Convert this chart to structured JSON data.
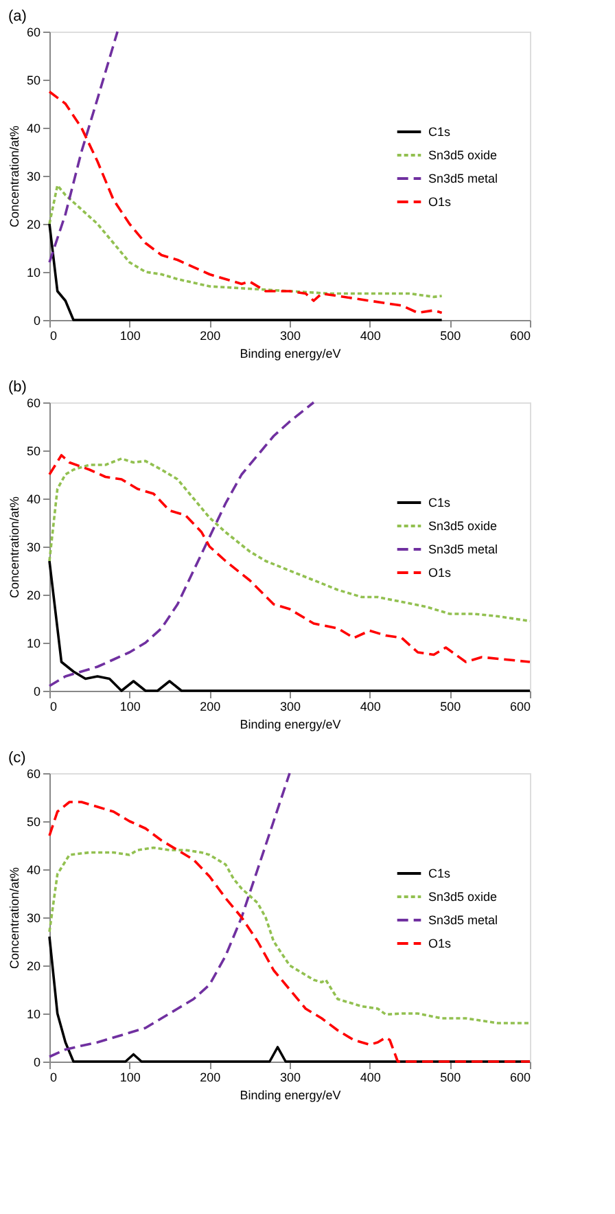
{
  "chart_data": [
    {
      "type": "line",
      "title": "(a)",
      "xlabel": "Binding energy/eV",
      "ylabel": "Concentration/at%",
      "xlim": [
        0,
        600
      ],
      "xticks": [
        0,
        100,
        200,
        300,
        400,
        500,
        600
      ],
      "ylim": [
        0,
        60
      ],
      "yticks": [
        0,
        10,
        20,
        30,
        40,
        50,
        60
      ],
      "grid": false,
      "legend": "right",
      "series": [
        {
          "name": "C1s",
          "color": "#000000",
          "line_style": "solid",
          "x": [
            0,
            5,
            10,
            20,
            25,
            30,
            490
          ],
          "values": [
            20,
            13,
            6,
            4,
            2,
            0,
            0
          ]
        },
        {
          "name": "Sn3d5 oxide",
          "color": "#92c050",
          "line_style": "dotted",
          "x": [
            0,
            10,
            20,
            40,
            60,
            80,
            100,
            120,
            140,
            160,
            200,
            250,
            300,
            350,
            400,
            450,
            480,
            490
          ],
          "values": [
            20,
            28,
            26,
            23,
            20,
            16,
            12,
            10,
            9.5,
            8.5,
            7,
            6.5,
            6,
            5.5,
            5.5,
            5.5,
            4.8,
            5
          ]
        },
        {
          "name": "Sn3d5 metal",
          "color": "#7030a0",
          "line_style": "dashed",
          "x": [
            0,
            20,
            40,
            60,
            85
          ],
          "values": [
            12,
            22,
            35,
            46,
            60
          ]
        },
        {
          "name": "O1s",
          "color": "#ff0000",
          "line_style": "dashed",
          "x": [
            0,
            20,
            40,
            60,
            80,
            100,
            120,
            140,
            160,
            200,
            240,
            250,
            270,
            300,
            320,
            330,
            340,
            360,
            400,
            440,
            460,
            480,
            490
          ],
          "values": [
            47.5,
            45,
            40,
            33,
            25,
            20,
            16,
            13.5,
            12.5,
            9.5,
            7.5,
            8,
            6,
            6,
            5.5,
            4,
            5.5,
            5,
            4,
            3,
            1.5,
            2,
            1.5
          ]
        }
      ]
    },
    {
      "type": "line",
      "title": "(b)",
      "xlabel": "Binding energy/eV",
      "ylabel": "Concentration/at%",
      "xlim": [
        0,
        600
      ],
      "xticks": [
        0,
        100,
        200,
        300,
        400,
        500,
        600
      ],
      "ylim": [
        0,
        60
      ],
      "yticks": [
        0,
        10,
        20,
        30,
        40,
        50,
        60
      ],
      "grid": false,
      "legend": "right",
      "series": [
        {
          "name": "C1s",
          "color": "#000000",
          "line_style": "solid",
          "x": [
            0,
            15,
            30,
            45,
            60,
            75,
            90,
            105,
            120,
            135,
            150,
            165,
            600
          ],
          "values": [
            27,
            6,
            4,
            2.5,
            3,
            2.5,
            0,
            2,
            0,
            0,
            2,
            0,
            0
          ]
        },
        {
          "name": "Sn3d5 oxide",
          "color": "#92c050",
          "line_style": "dotted",
          "x": [
            0,
            10,
            20,
            30,
            50,
            70,
            90,
            105,
            120,
            140,
            160,
            180,
            200,
            220,
            250,
            270,
            300,
            330,
            360,
            390,
            410,
            440,
            470,
            500,
            530,
            560,
            600
          ],
          "values": [
            27,
            42,
            45,
            46,
            47,
            47,
            48.3,
            47.5,
            47.8,
            46,
            44,
            40,
            36,
            33,
            29,
            27,
            25,
            23,
            21,
            19.5,
            19.5,
            18.5,
            17.5,
            16,
            16,
            15.5,
            14.5
          ]
        },
        {
          "name": "Sn3d5 metal",
          "color": "#7030a0",
          "line_style": "dashed",
          "x": [
            0,
            20,
            40,
            60,
            80,
            100,
            120,
            140,
            160,
            180,
            200,
            220,
            240,
            260,
            280,
            300,
            330
          ],
          "values": [
            1,
            3,
            4,
            5,
            6.5,
            8,
            10,
            13,
            18,
            25,
            32,
            39,
            45,
            49,
            53,
            56,
            60
          ]
        },
        {
          "name": "O1s",
          "color": "#ff0000",
          "line_style": "dashed",
          "x": [
            0,
            15,
            25,
            50,
            70,
            90,
            110,
            130,
            150,
            170,
            190,
            200,
            220,
            250,
            280,
            300,
            330,
            360,
            380,
            400,
            420,
            440,
            460,
            480,
            495,
            520,
            540,
            570,
            600
          ],
          "values": [
            45,
            49,
            47.5,
            46,
            44.5,
            44,
            42,
            41,
            37.5,
            36.5,
            33,
            30,
            27,
            23,
            18,
            17,
            14,
            13,
            11,
            12.5,
            11.5,
            11,
            8,
            7.5,
            9,
            6,
            7,
            6.5,
            6
          ]
        }
      ]
    },
    {
      "type": "line",
      "title": "(c)",
      "xlabel": "Binding energy/eV",
      "ylabel": "Concentration/at%",
      "xlim": [
        0,
        600
      ],
      "xticks": [
        0,
        100,
        200,
        300,
        400,
        500,
        600
      ],
      "ylim": [
        0,
        60
      ],
      "yticks": [
        0,
        10,
        20,
        30,
        40,
        50,
        60
      ],
      "grid": false,
      "legend": "right",
      "series": [
        {
          "name": "C1s",
          "color": "#000000",
          "line_style": "solid",
          "x": [
            0,
            10,
            20,
            30,
            95,
            105,
            115,
            275,
            285,
            295,
            600
          ],
          "values": [
            26,
            10,
            4,
            0,
            0,
            1.5,
            0,
            0,
            3,
            0,
            0
          ]
        },
        {
          "name": "Sn3d5 oxide",
          "color": "#92c050",
          "line_style": "dotted",
          "x": [
            0,
            10,
            25,
            50,
            80,
            100,
            110,
            130,
            150,
            170,
            190,
            200,
            220,
            230,
            240,
            260,
            270,
            280,
            300,
            330,
            340,
            345,
            360,
            390,
            410,
            420,
            440,
            460,
            490,
            520,
            560,
            600
          ],
          "values": [
            27,
            39,
            43,
            43.5,
            43.5,
            43,
            44,
            44.5,
            44,
            44,
            43.5,
            43,
            41,
            38,
            36,
            33,
            30,
            25,
            20,
            17,
            16.5,
            17,
            13,
            11.5,
            11,
            9.8,
            10,
            10,
            9,
            9,
            8,
            8
          ]
        },
        {
          "name": "Sn3d5 metal",
          "color": "#7030a0",
          "line_style": "dashed",
          "x": [
            0,
            20,
            40,
            60,
            80,
            100,
            120,
            140,
            160,
            180,
            200,
            220,
            240,
            260,
            280,
            300
          ],
          "values": [
            1,
            2.5,
            3.3,
            4,
            5,
            6,
            7,
            9,
            11,
            13,
            16,
            22,
            30,
            40,
            50,
            60
          ]
        },
        {
          "name": "O1s",
          "color": "#ff0000",
          "line_style": "dashed",
          "x": [
            0,
            10,
            25,
            40,
            60,
            80,
            100,
            120,
            140,
            160,
            180,
            200,
            220,
            240,
            260,
            280,
            300,
            320,
            340,
            360,
            380,
            400,
            410,
            420,
            425,
            435,
            600
          ],
          "values": [
            47,
            52,
            54,
            54,
            53,
            52,
            50,
            48.5,
            46,
            44,
            42,
            38.5,
            34,
            30,
            25,
            19,
            15,
            11,
            9,
            6.5,
            4.5,
            3.5,
            4,
            5,
            4.5,
            0,
            0
          ]
        }
      ]
    }
  ]
}
